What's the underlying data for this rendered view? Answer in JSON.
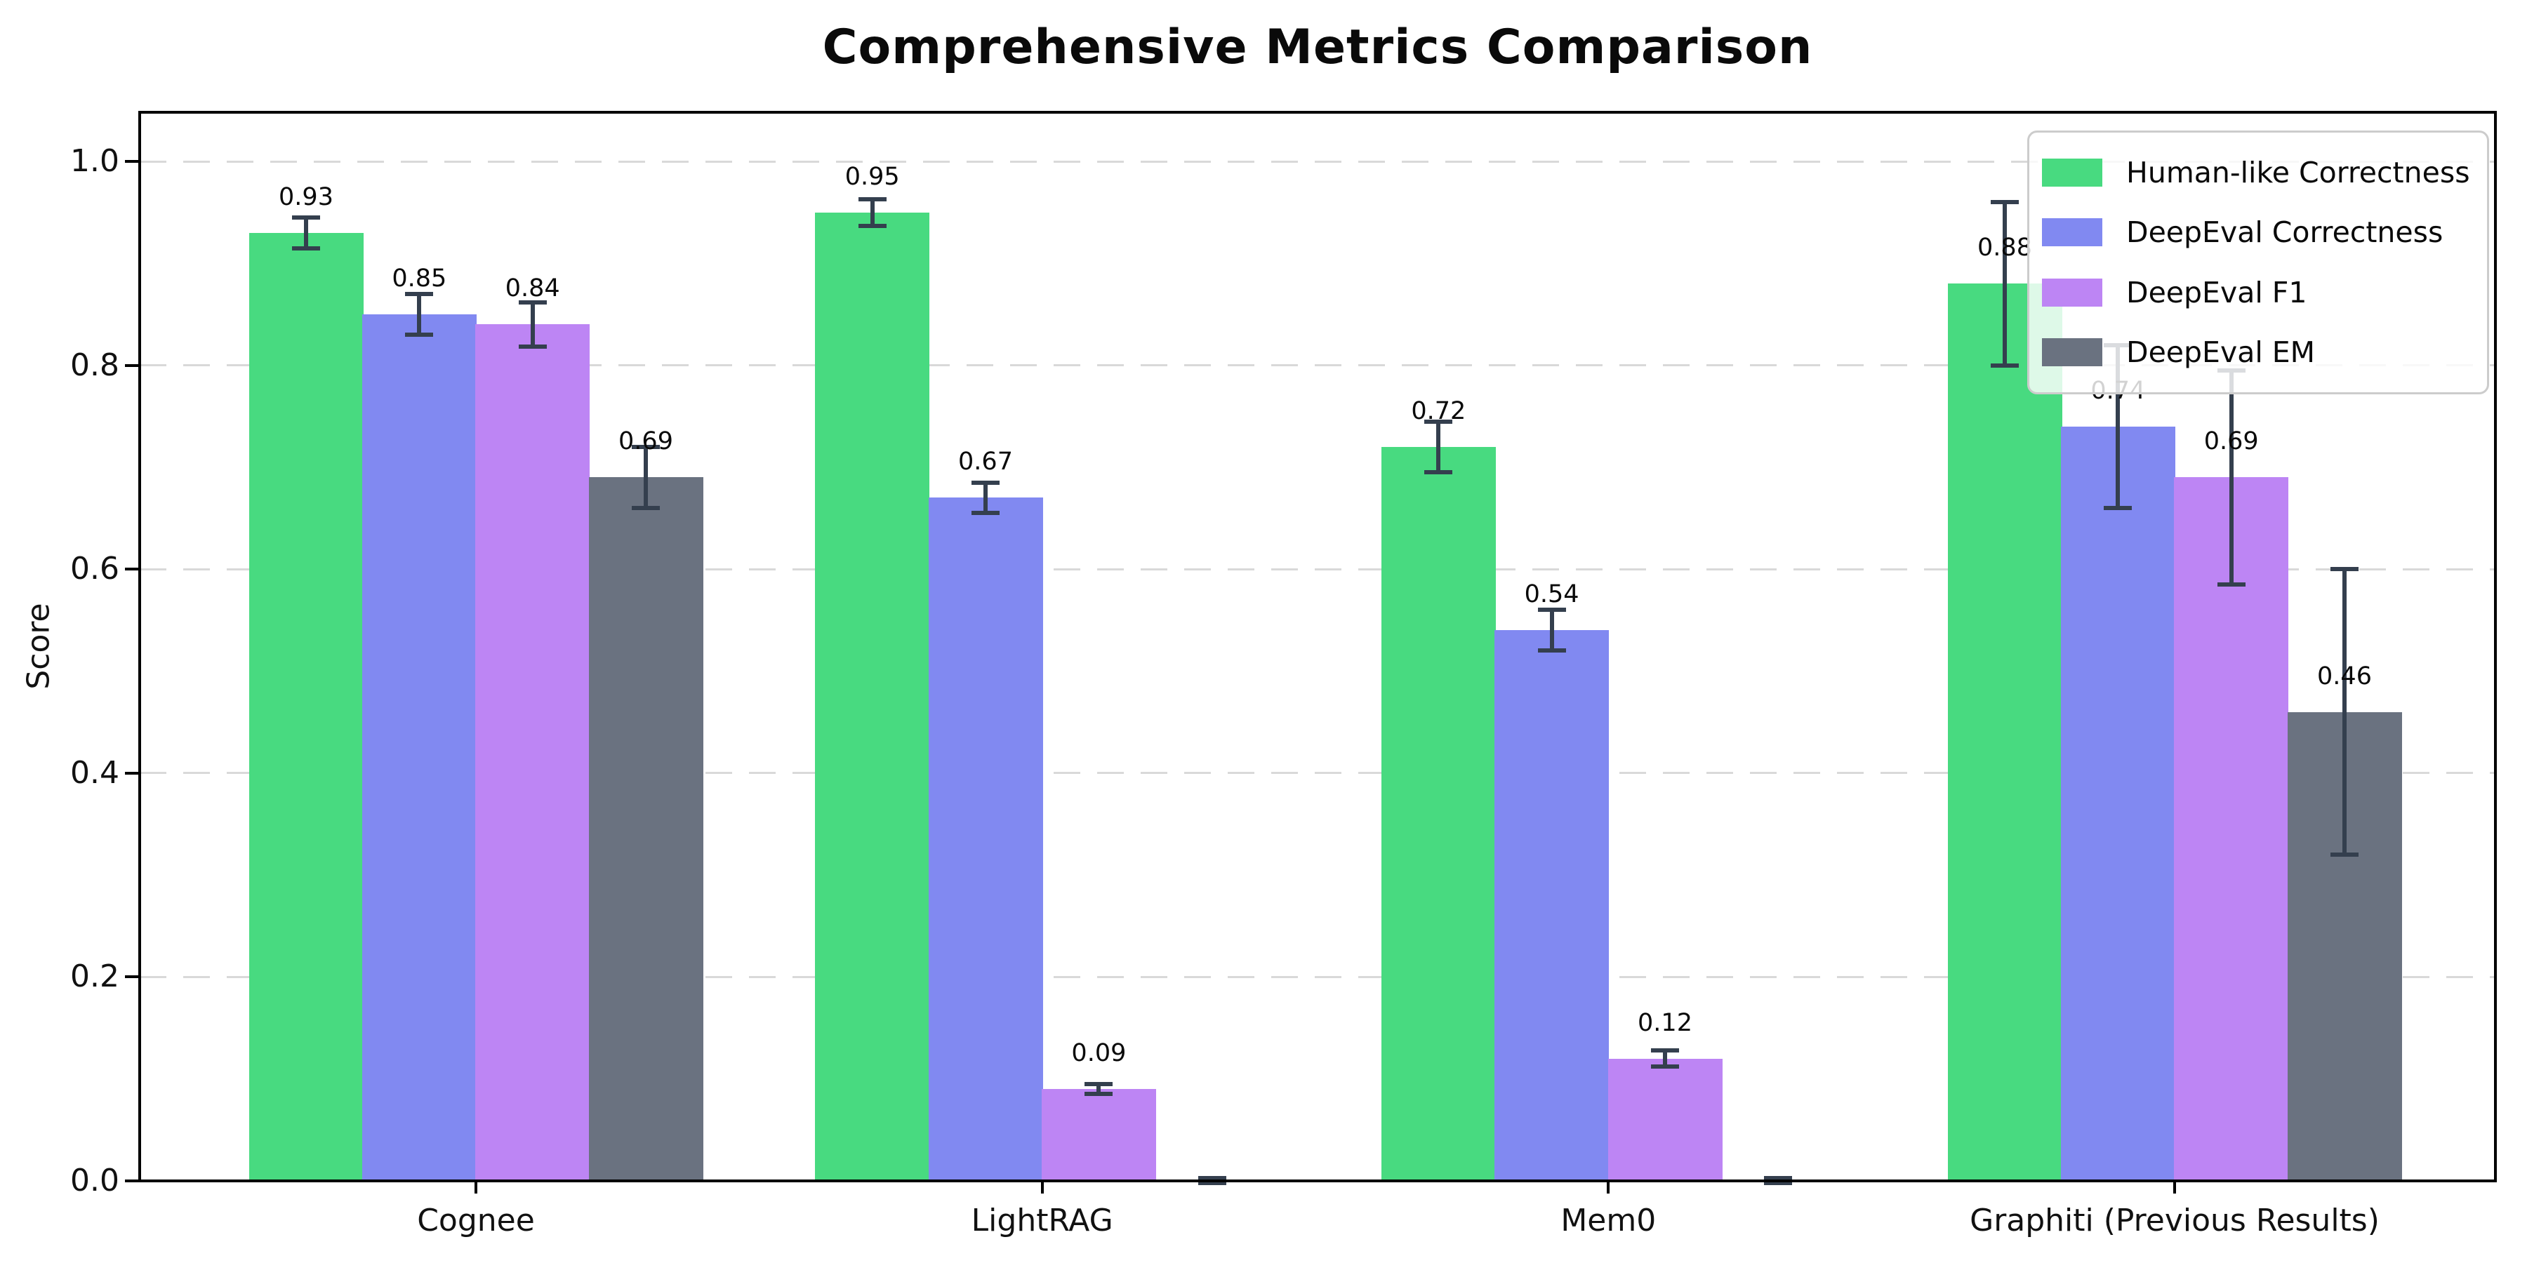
{
  "chart_data": {
    "type": "bar",
    "title": "Comprehensive Metrics Comparison",
    "ylabel": "Score",
    "categories": [
      "Cognee",
      "LightRAG",
      "Mem0",
      "Graphiti (Previous Results)"
    ],
    "yticks": [
      0.0,
      0.2,
      0.4,
      0.6,
      0.8,
      1.0
    ],
    "ytick_labels": [
      "0.0",
      "0.2",
      "0.4",
      "0.6",
      "0.8",
      "1.0"
    ],
    "ylim": [
      0,
      1.048
    ],
    "grid": "horizontal-dashed",
    "legend_position": "upper-right",
    "series": [
      {
        "name": "Human-like Correctness",
        "color": "#48da80",
        "values": [
          0.93,
          0.95,
          0.72,
          0.88
        ],
        "errors": [
          0.015,
          0.013,
          0.025,
          0.08
        ],
        "bar_labels": [
          "0.93",
          "0.95",
          "0.72",
          "0.88"
        ]
      },
      {
        "name": "DeepEval Correctness",
        "color": "#8189f1",
        "values": [
          0.85,
          0.67,
          0.54,
          0.74
        ],
        "errors": [
          0.02,
          0.015,
          0.02,
          0.08
        ],
        "bar_labels": [
          "0.85",
          "0.67",
          "0.54",
          "0.74"
        ]
      },
      {
        "name": "DeepEval F1",
        "color": "#bd85f4",
        "values": [
          0.84,
          0.09,
          0.12,
          0.69
        ],
        "errors": [
          0.022,
          0.005,
          0.008,
          0.105
        ],
        "bar_labels": [
          "0.84",
          "0.09",
          "0.12",
          "0.69"
        ]
      },
      {
        "name": "DeepEval EM",
        "color": "#6a7280",
        "values": [
          0.69,
          0.0,
          0.0,
          0.46
        ],
        "errors": [
          0.03,
          0.003,
          0.003,
          0.14
        ],
        "bar_labels": [
          "0.69",
          "",
          "",
          "0.46"
        ]
      }
    ],
    "colors": {
      "error_bar": "#343f4e",
      "grid": "#d9d9d9",
      "spine": "#000000",
      "legend_border": "#cccccc"
    }
  }
}
